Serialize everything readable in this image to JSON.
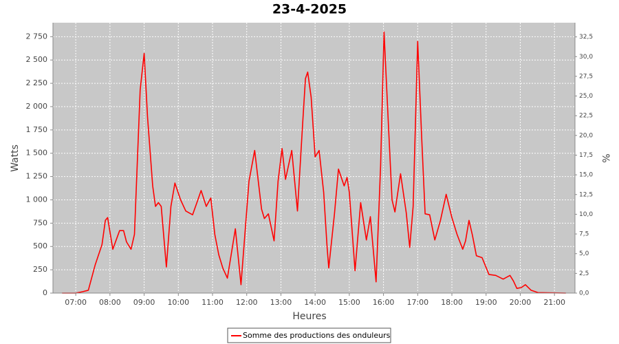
{
  "chart_data": {
    "type": "line",
    "title": "23-4-2025",
    "x_label": "Heures",
    "y_label": "Watts",
    "y2_label": "%",
    "x": [
      "06:36",
      "07:00",
      "07:12",
      "07:22",
      "07:34",
      "07:46",
      "07:52",
      "07:56",
      "08:05",
      "08:17",
      "08:24",
      "08:29",
      "08:37",
      "08:43",
      "08:53",
      "09:00",
      "09:06",
      "09:15",
      "09:20",
      "09:25",
      "09:30",
      "09:39",
      "09:47",
      "09:54",
      "10:04",
      "10:13",
      "10:25",
      "10:32",
      "10:40",
      "10:49",
      "10:57",
      "11:04",
      "11:11",
      "11:18",
      "11:26",
      "11:40",
      "11:50",
      "12:04",
      "12:14",
      "12:26",
      "12:31",
      "12:38",
      "12:48",
      "12:55",
      "13:02",
      "13:08",
      "13:19",
      "13:29",
      "13:38",
      "13:43",
      "13:47",
      "13:53",
      "14:00",
      "14:07",
      "14:15",
      "14:21",
      "14:24",
      "14:34",
      "14:41",
      "14:51",
      "14:56",
      "15:00",
      "15:10",
      "15:20",
      "15:30",
      "15:37",
      "15:47",
      "15:55",
      "16:01",
      "16:08",
      "16:15",
      "16:20",
      "16:30",
      "16:40",
      "16:46",
      "16:52",
      "17:00",
      "17:07",
      "17:13",
      "17:21",
      "17:30",
      "17:40",
      "17:50",
      "18:00",
      "18:09",
      "18:19",
      "18:24",
      "18:30",
      "18:36",
      "18:43",
      "18:53",
      "19:05",
      "19:17",
      "19:30",
      "19:42",
      "19:48",
      "19:54",
      "20:02",
      "20:09",
      "20:19",
      "20:31",
      "21:20"
    ],
    "series": [
      {
        "name": "Somme des productions des onduleurs",
        "color": "#ff0000",
        "values": [
          0,
          0,
          15,
          30,
          300,
          520,
          780,
          810,
          470,
          670,
          670,
          550,
          470,
          630,
          2180,
          2570,
          1890,
          1150,
          930,
          970,
          930,
          280,
          930,
          1180,
          1000,
          880,
          840,
          960,
          1100,
          930,
          1020,
          630,
          410,
          270,
          160,
          690,
          90,
          1200,
          1530,
          900,
          800,
          850,
          560,
          1200,
          1550,
          1220,
          1530,
          880,
          1800,
          2300,
          2370,
          2100,
          1460,
          1530,
          1080,
          490,
          270,
          850,
          1330,
          1150,
          1240,
          1080,
          240,
          970,
          570,
          820,
          120,
          1370,
          2800,
          1890,
          1000,
          870,
          1280,
          860,
          490,
          930,
          2700,
          1670,
          850,
          840,
          570,
          780,
          1060,
          810,
          630,
          470,
          560,
          780,
          620,
          400,
          380,
          200,
          190,
          150,
          190,
          130,
          50,
          60,
          90,
          30,
          5,
          0
        ]
      }
    ],
    "xlim": [
      "06:20",
      "21:36"
    ],
    "xticks": [
      "07:00",
      "08:00",
      "09:00",
      "10:00",
      "11:00",
      "12:00",
      "13:00",
      "14:00",
      "15:00",
      "16:00",
      "17:00",
      "18:00",
      "19:00",
      "20:00",
      "21:00"
    ],
    "ylim": [
      0,
      2900
    ],
    "yticks": [
      0,
      250,
      500,
      750,
      {
        "value": 1000,
        "label": "1 000"
      },
      {
        "value": 1250,
        "label": "1 250"
      },
      {
        "value": 1500,
        "label": "1 500"
      },
      {
        "value": 1750,
        "label": "1 750"
      },
      {
        "value": 2000,
        "label": "2 000"
      },
      {
        "value": 2250,
        "label": "2 250"
      },
      {
        "value": 2500,
        "label": "2 500"
      },
      {
        "value": 2750,
        "label": "2 750"
      }
    ],
    "y2lim": [
      0,
      34.3
    ],
    "y2ticks": [
      {
        "value": 0,
        "label": "0,0"
      },
      {
        "value": 2.5,
        "label": "2,5"
      },
      {
        "value": 5,
        "label": "5,0"
      },
      {
        "value": 7.5,
        "label": "7,5"
      },
      {
        "value": 10,
        "label": "10,0"
      },
      {
        "value": 12.5,
        "label": "12,5"
      },
      {
        "value": 15,
        "label": "15,0"
      },
      {
        "value": 17.5,
        "label": "17,5"
      },
      {
        "value": 20,
        "label": "20,0"
      },
      {
        "value": 22.5,
        "label": "22,5"
      },
      {
        "value": 25,
        "label": "25,0"
      },
      {
        "value": 27.5,
        "label": "27,5"
      },
      {
        "value": 30,
        "label": "30,0"
      },
      {
        "value": 32.5,
        "label": "32,5"
      }
    ],
    "grid": true,
    "legend": "bottom"
  }
}
